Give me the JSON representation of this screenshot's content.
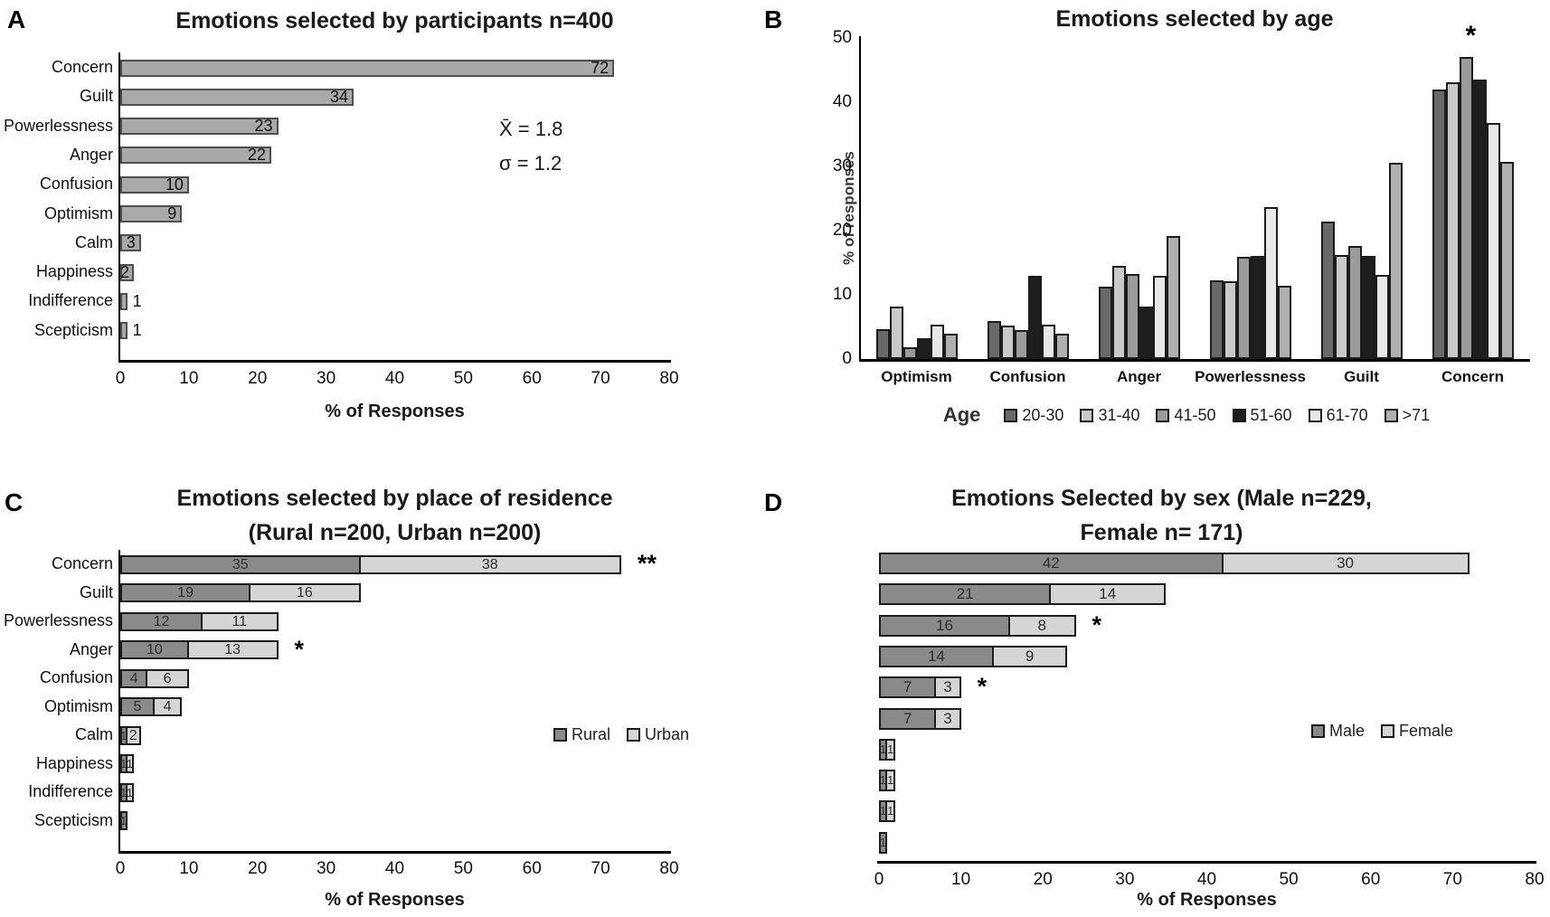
{
  "figure_title": "Four-panel emotion survey bar charts",
  "chart_data": [
    {
      "panel": "A",
      "type": "bar",
      "orientation": "horizontal",
      "title": "Emotions selected by participants n=400",
      "categories": [
        "Concern",
        "Guilt",
        "Powerlessness",
        "Anger",
        "Confusion",
        "Optimism",
        "Calm",
        "Happiness",
        "Indifference",
        "Scepticism"
      ],
      "values": [
        72,
        34,
        23,
        22,
        10,
        9,
        3,
        2,
        1,
        1
      ],
      "bar_color": "#a9a9a9",
      "bar_border": "#4f4f4f",
      "xlabel": "% of Responses",
      "xlim": [
        0,
        80
      ],
      "xticks": [
        0,
        10,
        20,
        30,
        40,
        50,
        60,
        70,
        80
      ],
      "annotations": [
        "X̄ = 1.8",
        "σ = 1.2"
      ]
    },
    {
      "panel": "B",
      "type": "bar",
      "orientation": "vertical",
      "grouped": true,
      "title": "Emotions selected by age",
      "categories": [
        "Optimism",
        "Confusion",
        "Anger",
        "Powerlessness",
        "Guilt",
        "Concern"
      ],
      "series": [
        {
          "name": "20-30",
          "color": "#696969",
          "values": [
            4.7,
            5.9,
            11.3,
            12.3,
            21.4,
            42.0
          ]
        },
        {
          "name": "31-40",
          "color": "#c9c9c9",
          "values": [
            8.1,
            5.2,
            14.5,
            12.1,
            16.2,
            43.1
          ]
        },
        {
          "name": "41-50",
          "color": "#9b9b9b",
          "values": [
            1.8,
            4.5,
            13.2,
            15.9,
            17.6,
            47.0
          ]
        },
        {
          "name": "51-60",
          "color": "#1e1e1e",
          "values": [
            3.2,
            12.9,
            8.1,
            16.1,
            16.1,
            43.5
          ]
        },
        {
          "name": "61-70",
          "color": "#e8e8e8",
          "values": [
            5.3,
            5.3,
            13.0,
            23.6,
            13.1,
            36.8
          ]
        },
        {
          "name": ">71",
          "color": "#b0b0b0",
          "values": [
            3.9,
            3.9,
            19.2,
            11.4,
            30.6,
            30.7
          ]
        }
      ],
      "ylabel": "% of responses",
      "ylim": [
        0,
        50
      ],
      "yticks": [
        0,
        10,
        20,
        30,
        40,
        50
      ],
      "legend_title": "Age",
      "legend_position": "bottom",
      "sig_markers": [
        {
          "category": "Concern",
          "text": "*"
        }
      ]
    },
    {
      "panel": "C",
      "type": "bar",
      "orientation": "horizontal",
      "stacked": true,
      "title_lines": [
        "Emotions selected by place of residence",
        "(Rural n=200, Urban n=200)"
      ],
      "categories": [
        "Concern",
        "Guilt",
        "Powerlessness",
        "Anger",
        "Confusion",
        "Optimism",
        "Calm",
        "Happiness",
        "Indifference",
        "Scepticism"
      ],
      "series": [
        {
          "name": "Rural",
          "color": "#8a8a8a",
          "values": [
            35,
            19,
            12,
            10,
            4,
            5,
            1,
            1,
            1,
            1
          ]
        },
        {
          "name": "Urban",
          "color": "#d5d5d5",
          "values": [
            38,
            16,
            11,
            13,
            6,
            4,
            2,
            1,
            1,
            0
          ]
        }
      ],
      "xlabel": "% of Responses",
      "xlim": [
        0,
        80
      ],
      "xticks": [
        0,
        10,
        20,
        30,
        40,
        50,
        60,
        70,
        80
      ],
      "legend_position": "right-middle",
      "sig_markers": [
        {
          "row": 0,
          "text": "**"
        },
        {
          "row": 3,
          "text": "*"
        }
      ]
    },
    {
      "panel": "D",
      "type": "bar",
      "orientation": "horizontal",
      "stacked": true,
      "title_lines": [
        "Emotions Selected by sex (Male n=229,",
        "Female n= 171)"
      ],
      "category_labels_shown": false,
      "series": [
        {
          "name": "Male",
          "color": "#8a8a8a",
          "values": [
            42,
            21,
            16,
            14,
            7,
            7,
            1,
            1,
            1,
            1
          ]
        },
        {
          "name": "Female",
          "color": "#d5d5d5",
          "values": [
            30,
            14,
            8,
            9,
            3,
            3,
            1,
            1,
            1,
            0
          ]
        }
      ],
      "xlabel": "% of Responses",
      "xlim": [
        0,
        80
      ],
      "xticks": [
        0,
        10,
        20,
        30,
        40,
        50,
        60,
        70,
        80
      ],
      "legend_position": "right-middle",
      "sig_markers": [
        {
          "row": 2,
          "text": "*"
        },
        {
          "row": 4,
          "text": "*"
        }
      ]
    }
  ]
}
